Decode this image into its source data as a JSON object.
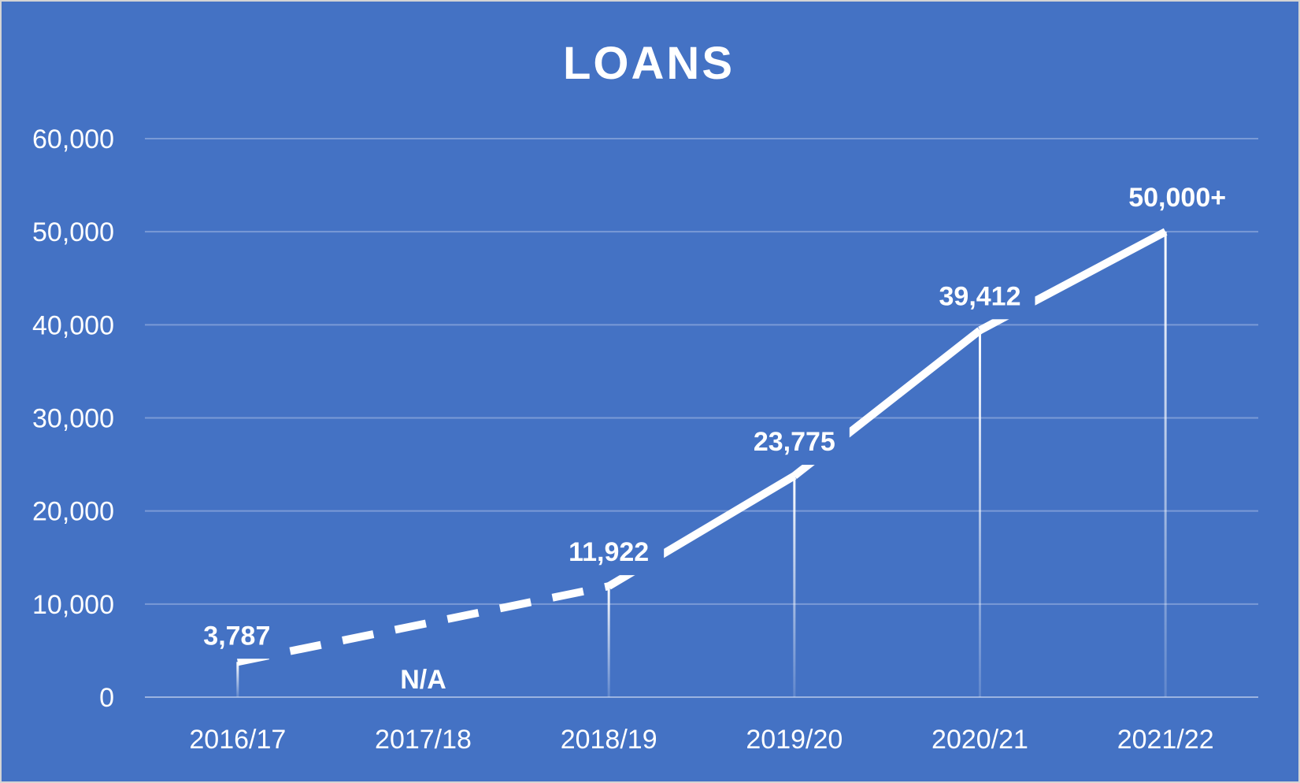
{
  "chart_data": {
    "type": "line",
    "title": "LOANS",
    "xlabel": "",
    "ylabel": "",
    "categories": [
      "2016/17",
      "2017/18",
      "2018/19",
      "2019/20",
      "2020/21",
      "2021/22"
    ],
    "values": [
      3787,
      null,
      11922,
      23775,
      39412,
      50000
    ],
    "data_labels": [
      "3,787",
      "N/A",
      "11,922",
      "23,775",
      "39,412",
      "50,000+"
    ],
    "ylim": [
      0,
      60000
    ],
    "yticks": [
      0,
      10000,
      20000,
      30000,
      40000,
      50000,
      60000
    ],
    "ytick_labels": [
      "0",
      "10,000",
      "20,000",
      "30,000",
      "40,000",
      "50,000",
      "60,000"
    ],
    "grid": true,
    "legend": "none",
    "drop_lines": true,
    "dashed_segment": [
      "2016/17",
      "2018/19"
    ],
    "colors": {
      "background": "#4472c4",
      "line": "#ffffff",
      "text": "#ffffff",
      "grid": "#7a9ad6"
    }
  }
}
